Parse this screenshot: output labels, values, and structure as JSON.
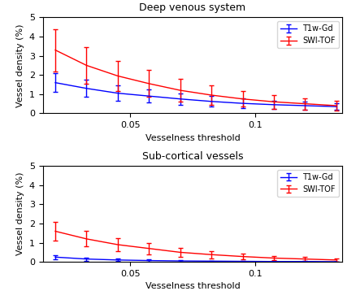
{
  "chart_data": [
    {
      "type": "line",
      "title": "Deep venous system",
      "x_label": "Vesselness threshold",
      "y_label": "Vessel density (%)",
      "x": [
        0.02,
        0.0325,
        0.045,
        0.0575,
        0.07,
        0.0825,
        0.095,
        0.1075,
        0.12,
        0.1325
      ],
      "series": [
        {
          "name": "T1w-Gd",
          "color": "#0000ff",
          "values": [
            1.6,
            1.3,
            1.05,
            0.9,
            0.75,
            0.62,
            0.52,
            0.45,
            0.4,
            0.35
          ],
          "errors": [
            0.5,
            0.45,
            0.4,
            0.35,
            0.3,
            0.28,
            0.25,
            0.22,
            0.2,
            0.18
          ]
        },
        {
          "name": "SWI-TOF",
          "color": "#ff0000",
          "values": [
            3.3,
            2.5,
            1.95,
            1.55,
            1.2,
            0.95,
            0.75,
            0.6,
            0.5,
            0.4
          ],
          "errors": [
            1.1,
            0.95,
            0.8,
            0.7,
            0.6,
            0.5,
            0.4,
            0.35,
            0.3,
            0.25
          ]
        }
      ],
      "xlim": [
        0.015,
        0.135
      ],
      "xticks": [
        0.05,
        0.1
      ],
      "ylim": [
        0,
        5
      ],
      "yticks": [
        0,
        1,
        2,
        3,
        4,
        5
      ],
      "legend": "upper right",
      "grid": false
    },
    {
      "type": "line",
      "title": "Sub-cortical vessels",
      "x_label": "Vesselness threshold",
      "y_label": "Vessel density (%)",
      "x": [
        0.02,
        0.0325,
        0.045,
        0.0575,
        0.07,
        0.0825,
        0.095,
        0.1075,
        0.12,
        0.1325
      ],
      "series": [
        {
          "name": "T1w-Gd",
          "color": "#0000ff",
          "values": [
            0.25,
            0.15,
            0.1,
            0.07,
            0.05,
            0.04,
            0.03,
            0.02,
            0.02,
            0.01
          ],
          "errors": [
            0.1,
            0.08,
            0.06,
            0.05,
            0.04,
            0.03,
            0.03,
            0.02,
            0.02,
            0.01
          ]
        },
        {
          "name": "SWI-TOF",
          "color": "#ff0000",
          "values": [
            1.6,
            1.2,
            0.9,
            0.7,
            0.5,
            0.38,
            0.28,
            0.2,
            0.15,
            0.1
          ],
          "errors": [
            0.5,
            0.4,
            0.35,
            0.3,
            0.25,
            0.2,
            0.16,
            0.12,
            0.1,
            0.08
          ]
        }
      ],
      "xlim": [
        0.015,
        0.135
      ],
      "xticks": [
        0.05,
        0.1
      ],
      "ylim": [
        0,
        5
      ],
      "yticks": [
        0,
        1,
        2,
        3,
        4,
        5
      ],
      "legend": "upper right",
      "grid": false
    }
  ]
}
